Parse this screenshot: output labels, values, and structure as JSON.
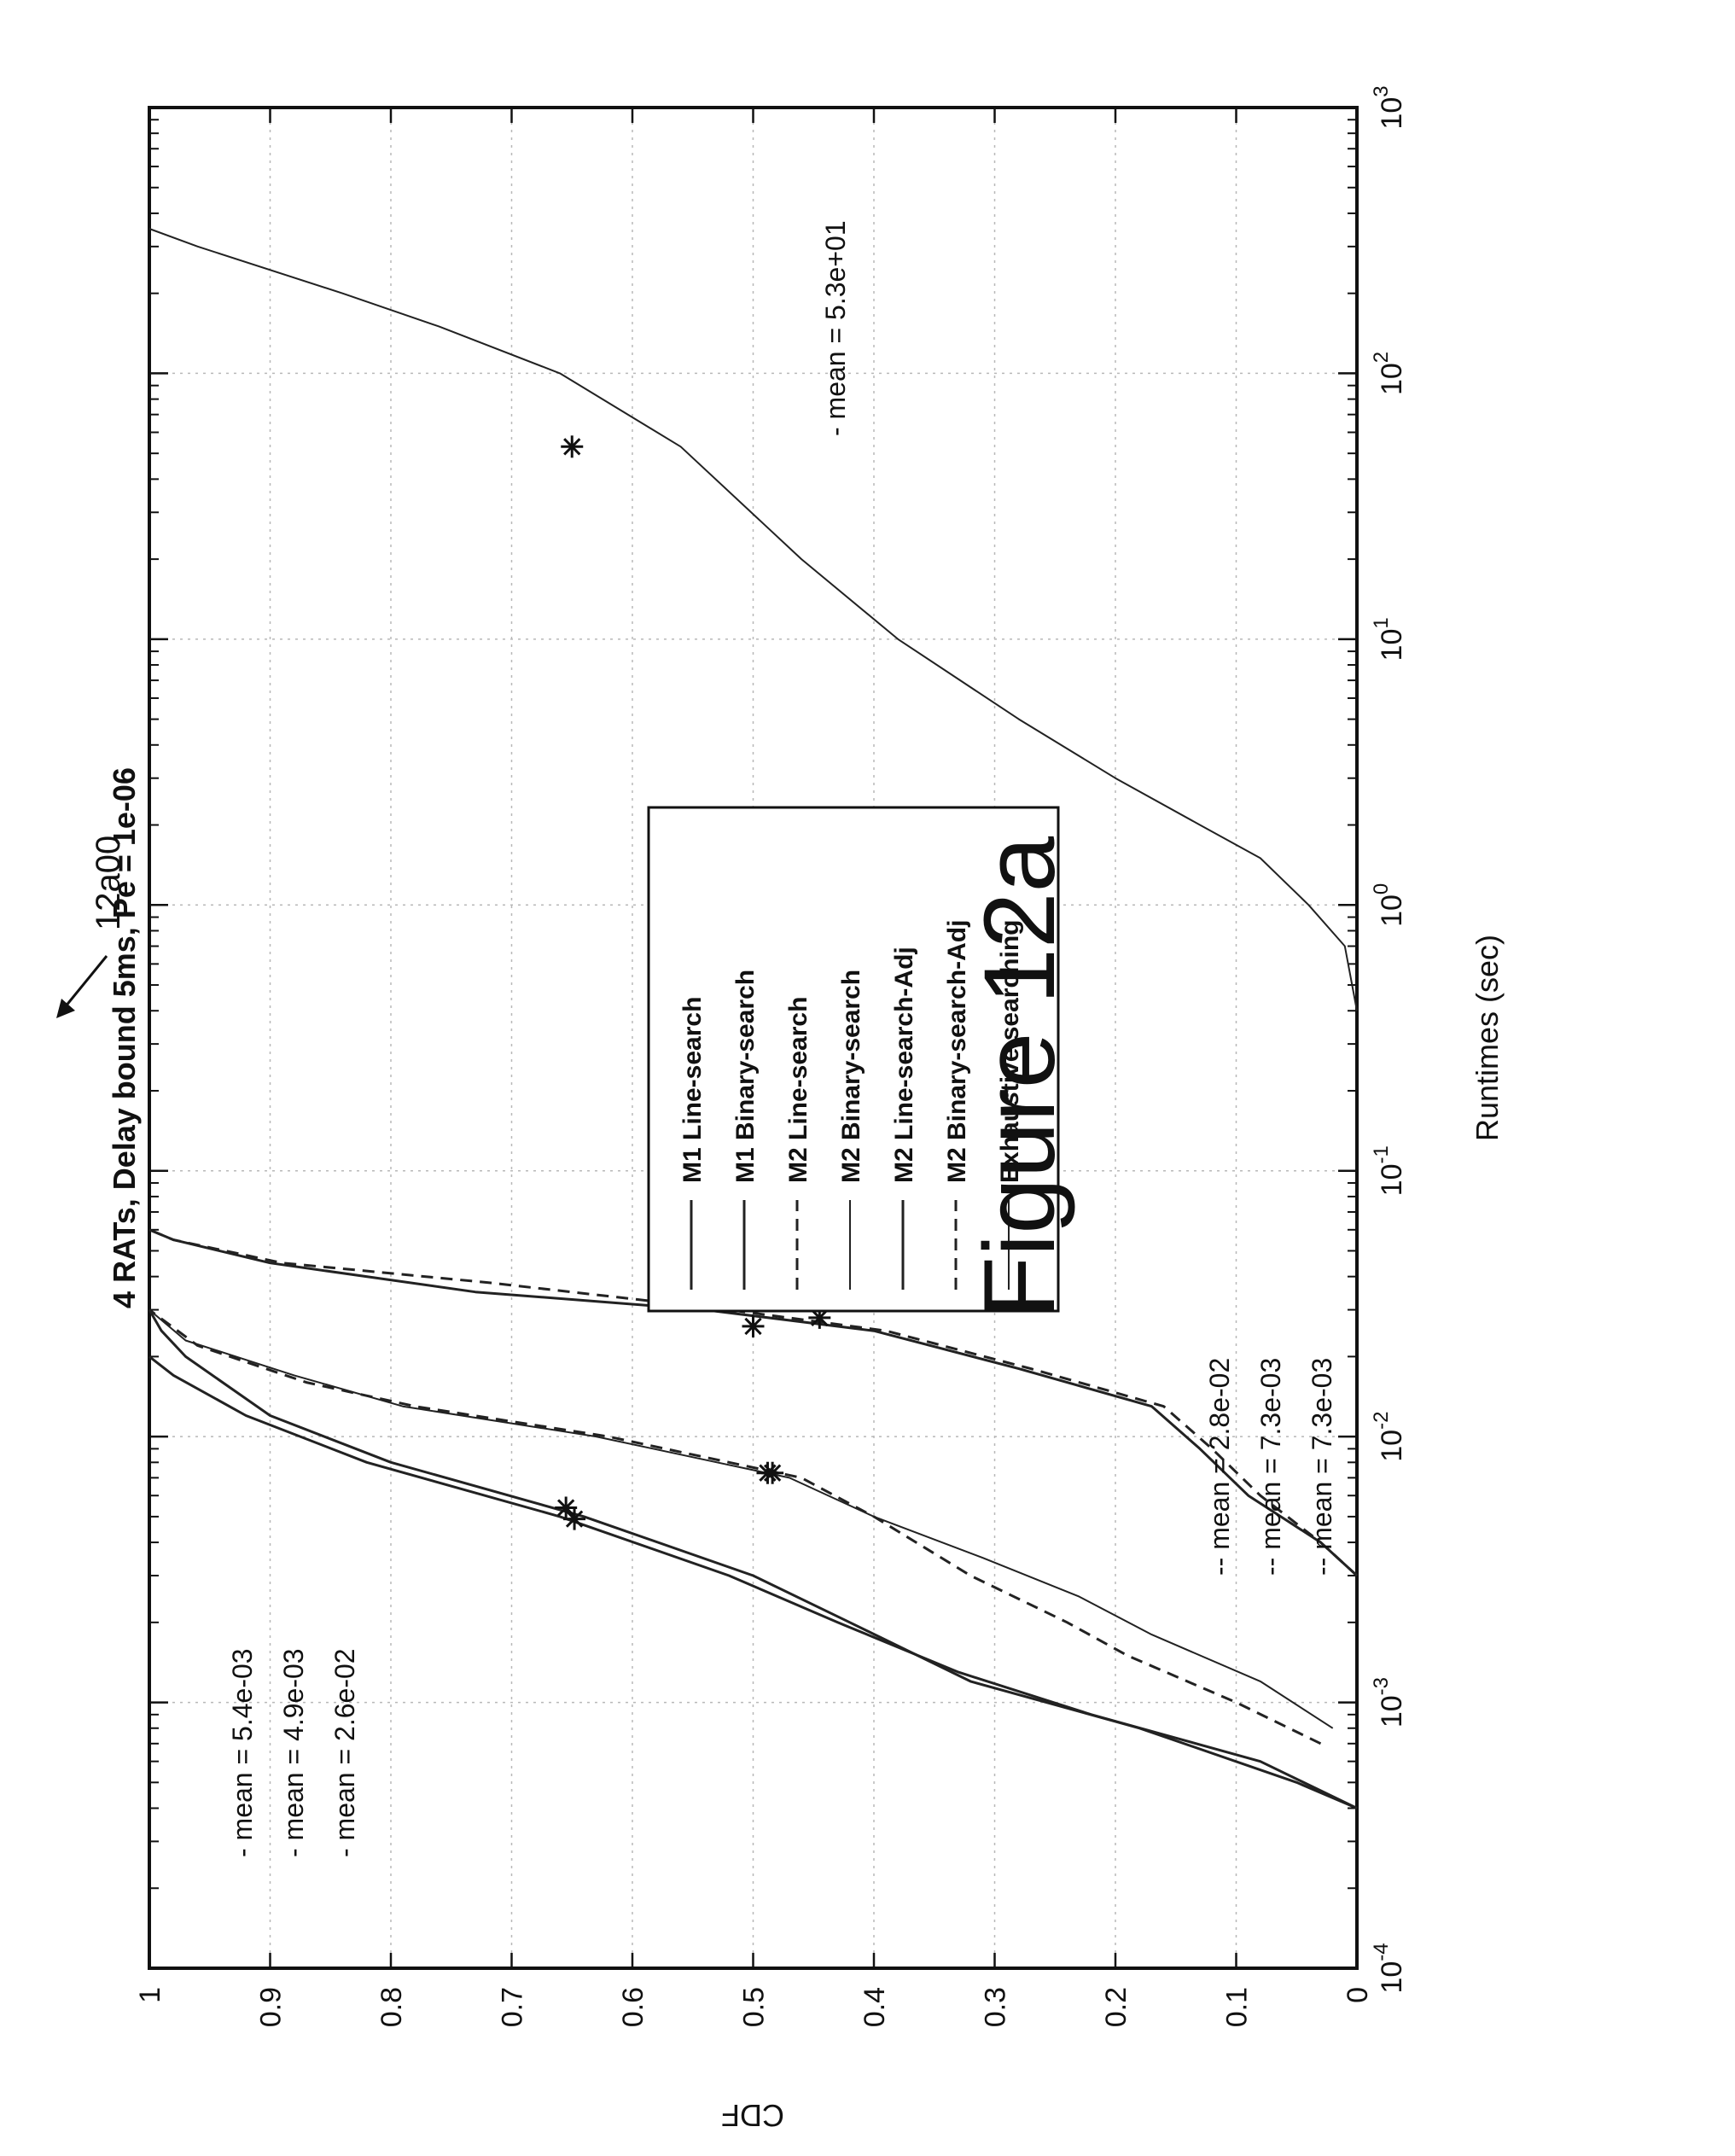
{
  "figure_ref": "12a00",
  "caption": "Figure 12a",
  "chart_data": {
    "type": "line",
    "title": "4 RATs, Delay bound 5ms, Pe = 1e-06",
    "xlabel": "Runtimes (sec)",
    "ylabel": "CDF",
    "xscale": "log",
    "xlim": [
      0.0001,
      1000
    ],
    "ylim": [
      0,
      1
    ],
    "grid": true,
    "legend_position": "center",
    "x_ticks": [
      {
        "base": "10",
        "exp": "-4"
      },
      {
        "base": "10",
        "exp": "-3"
      },
      {
        "base": "10",
        "exp": "-2"
      },
      {
        "base": "10",
        "exp": "-1"
      },
      {
        "base": "10",
        "exp": "0"
      },
      {
        "base": "10",
        "exp": "1"
      },
      {
        "base": "10",
        "exp": "2"
      },
      {
        "base": "10",
        "exp": "3"
      }
    ],
    "y_ticks": [
      "0",
      "0.1",
      "0.2",
      "0.3",
      "0.4",
      "0.5",
      "0.6",
      "0.7",
      "0.8",
      "0.9",
      "1"
    ],
    "legend": [
      "M1 Line-search",
      "M1 Binary-search",
      "M2 Line-search",
      "M2 Binary-search",
      "M2 Line-search-Adj",
      "M2 Binary-search-Adj",
      "Exhaustive searching"
    ],
    "annotations_left": [
      "- mean = 5.4e-03",
      "- mean = 4.9e-03",
      "- mean = 2.6e-02"
    ],
    "annotations_mid": [
      "-- mean = 2.8e-02",
      "-- mean = 7.3e-03",
      "-- mean = 7.3e-03"
    ],
    "annotations_right": [
      "- mean = 5.3e+01"
    ],
    "series": [
      {
        "style": "solid",
        "stroke": 3,
        "x": [
          0.0004,
          0.0005,
          0.0008,
          0.0012,
          0.002,
          0.003,
          0.005,
          0.008,
          0.012,
          0.02,
          0.025,
          0.03
        ],
        "y": [
          0.0,
          0.05,
          0.18,
          0.32,
          0.42,
          0.5,
          0.64,
          0.8,
          0.9,
          0.97,
          0.99,
          1.0
        ]
      },
      {
        "style": "solid",
        "stroke": 3,
        "x": [
          0.0004,
          0.0006,
          0.0009,
          0.0013,
          0.002,
          0.003,
          0.005,
          0.008,
          0.012,
          0.017,
          0.02
        ],
        "y": [
          0.0,
          0.08,
          0.22,
          0.33,
          0.43,
          0.52,
          0.66,
          0.82,
          0.92,
          0.98,
          1.0
        ]
      },
      {
        "style": "dashed",
        "stroke": 3,
        "x": [
          0.0007,
          0.001,
          0.0015,
          0.002,
          0.003,
          0.005,
          0.007,
          0.008,
          0.01,
          0.013,
          0.016,
          0.022,
          0.03
        ],
        "y": [
          0.03,
          0.1,
          0.19,
          0.24,
          0.32,
          0.4,
          0.46,
          0.52,
          0.62,
          0.78,
          0.87,
          0.96,
          1.0
        ]
      },
      {
        "style": "solid",
        "stroke": 2,
        "x": [
          0.0008,
          0.0012,
          0.0018,
          0.0025,
          0.0035,
          0.005,
          0.007,
          0.008,
          0.01,
          0.013,
          0.017,
          0.023,
          0.03
        ],
        "y": [
          0.02,
          0.08,
          0.17,
          0.23,
          0.31,
          0.4,
          0.47,
          0.53,
          0.63,
          0.79,
          0.88,
          0.97,
          1.0
        ]
      },
      {
        "style": "solid",
        "stroke": 3,
        "x": [
          0.003,
          0.004,
          0.006,
          0.009,
          0.013,
          0.018,
          0.025,
          0.03,
          0.035,
          0.045,
          0.055,
          0.06
        ],
        "y": [
          0.0,
          0.03,
          0.09,
          0.13,
          0.17,
          0.28,
          0.4,
          0.54,
          0.73,
          0.9,
          0.98,
          1.0
        ]
      },
      {
        "style": "dashed",
        "stroke": 3,
        "x": [
          0.003,
          0.004,
          0.006,
          0.009,
          0.013,
          0.018,
          0.025,
          0.03,
          0.038,
          0.045,
          0.055,
          0.06
        ],
        "y": [
          0.0,
          0.03,
          0.08,
          0.12,
          0.16,
          0.27,
          0.39,
          0.52,
          0.72,
          0.89,
          0.98,
          1.0
        ]
      },
      {
        "style": "solid",
        "stroke": 2,
        "x": [
          0.4,
          0.7,
          1,
          1.5,
          2,
          3,
          5,
          10,
          20,
          53,
          100,
          150,
          200,
          300,
          350
        ],
        "y": [
          0.0,
          0.01,
          0.04,
          0.08,
          0.13,
          0.2,
          0.28,
          0.38,
          0.46,
          0.56,
          0.66,
          0.76,
          0.84,
          0.96,
          1.0
        ]
      }
    ],
    "mean_markers": [
      {
        "x": 0.0054,
        "y": 0.655
      },
      {
        "x": 0.0049,
        "y": 0.648
      },
      {
        "x": 0.0073,
        "y": 0.488
      },
      {
        "x": 0.0073,
        "y": 0.484
      },
      {
        "x": 0.026,
        "y": 0.5
      },
      {
        "x": 0.028,
        "y": 0.445
      },
      {
        "x": 53,
        "y": 0.65
      }
    ]
  }
}
